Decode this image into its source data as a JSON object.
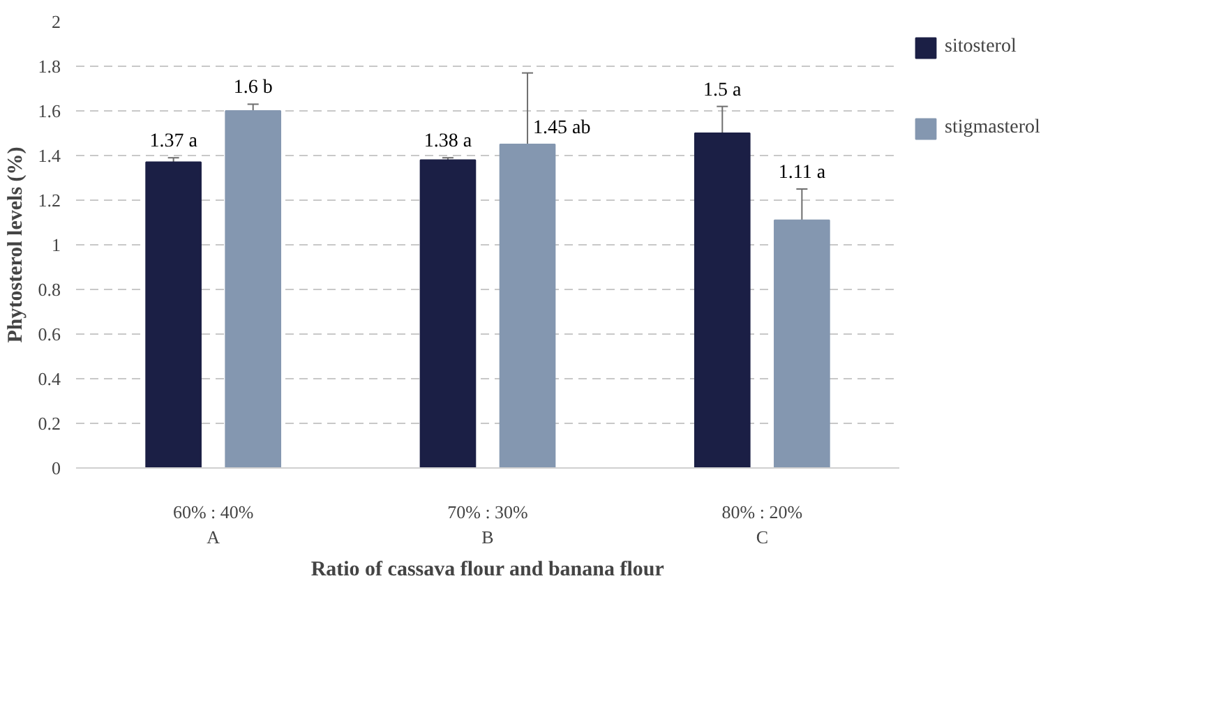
{
  "chart_data": {
    "type": "bar",
    "xlabel": "Ratio of cassava flour and banana flour",
    "ylabel": "Phytosterol levels (%)",
    "categories": [
      "60% : 40%\nA",
      "70% : 30%\nB",
      "80% : 20%\nC"
    ],
    "series": [
      {
        "name": "sitosterol",
        "color": "#1b1f45",
        "values": [
          1.37,
          1.38,
          1.5
        ],
        "errors": [
          0.02,
          0.01,
          0.12
        ],
        "value_labels": [
          "1.37 a",
          "1.38 a",
          "1.5 a"
        ]
      },
      {
        "name": "stigmasterol",
        "color": "#8497b0",
        "values": [
          1.6,
          1.45,
          1.11
        ],
        "errors": [
          0.03,
          0.32,
          0.14
        ],
        "value_labels": [
          "1.6 b",
          "1.45 ab",
          "1.11 a"
        ]
      }
    ],
    "ylim": [
      0,
      2
    ],
    "yticks": [
      0,
      0.2,
      0.4,
      0.6,
      0.8,
      1,
      1.2,
      1.4,
      1.6,
      1.8,
      2
    ],
    "grid": "y",
    "legend": "top right"
  }
}
